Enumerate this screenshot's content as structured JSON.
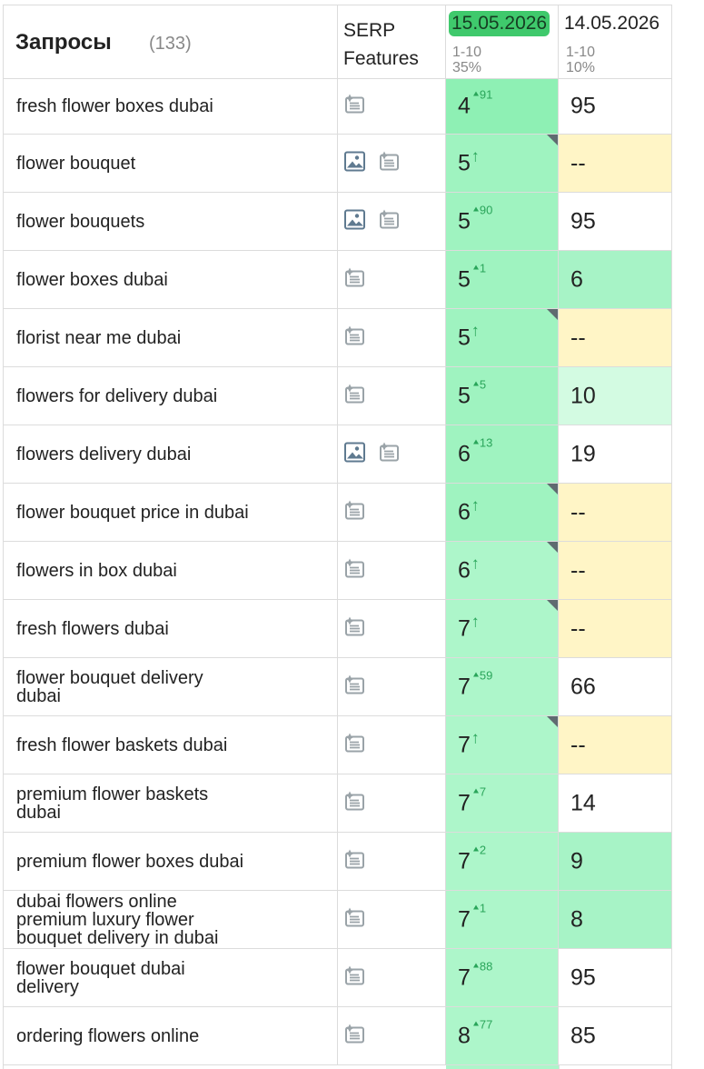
{
  "header": {
    "title": "Запросы",
    "count": "(133)",
    "serp": "SERP Features",
    "dates": [
      {
        "date": "15.05.2026",
        "range": "1-10",
        "share": "35%"
      },
      {
        "date": "14.05.2026",
        "range": "1-10",
        "share": "10%"
      }
    ]
  },
  "rows": [
    {
      "query": "fresh flower boxes dubai",
      "position": 4,
      "change": "91",
      "previous": 95
    },
    {
      "query": "flower bouquet",
      "position": 5,
      "change": "↑",
      "previous": "--"
    },
    {
      "query": "flower bouquets",
      "position": 5,
      "change": "90",
      "previous": 95
    },
    {
      "query": "flower boxes dubai",
      "position": 5,
      "change": "1",
      "previous": 6
    },
    {
      "query": "florist near me dubai",
      "position": 5,
      "change": "↑",
      "previous": "--"
    },
    {
      "query": "flowers for delivery dubai",
      "position": 5,
      "change": "5",
      "previous": 10
    },
    {
      "query": "flowers delivery dubai",
      "position": 6,
      "change": "13",
      "previous": 19
    },
    {
      "query": "flower bouquet price in dubai",
      "position": 6,
      "change": "↑",
      "previous": "--"
    },
    {
      "query": "flowers in box dubai",
      "position": 6,
      "change": "↑",
      "previous": "--"
    },
    {
      "query": "fresh flowers dubai",
      "position": 7,
      "change": "↑",
      "previous": "--"
    },
    {
      "query": "flower bouquet delivery dubai",
      "position": 7,
      "change": "59",
      "previous": 66
    },
    {
      "query": "fresh flower baskets dubai",
      "position": 7,
      "change": "↑",
      "previous": "--"
    },
    {
      "query": "premium flower baskets dubai",
      "position": 7,
      "change": "7",
      "previous": 14
    },
    {
      "query": "premium flower boxes dubai",
      "position": 7,
      "change": "2",
      "previous": 9
    },
    {
      "query": "dubai flowers online premium luxury flower bouquet delivery in dubai",
      "position": 7,
      "change": "1",
      "previous": 8
    },
    {
      "query": "flower bouquet dubai delivery",
      "position": 7,
      "change": "88",
      "previous": 95
    },
    {
      "query": "ordering flowers online",
      "position": 8,
      "change": "77",
      "previous": 85
    }
  ]
}
